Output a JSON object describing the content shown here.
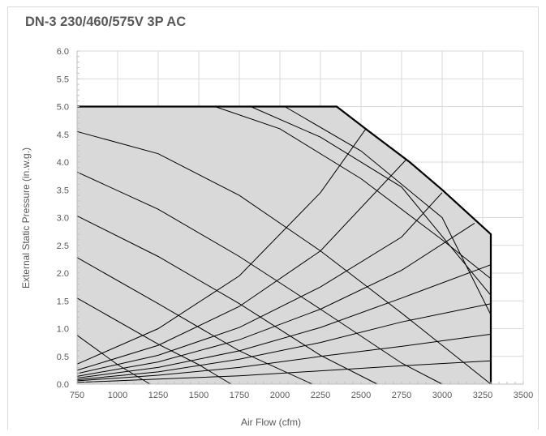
{
  "chart_data": {
    "type": "line",
    "title": "DN-3 230/460/575V 3P AC",
    "xlabel": "Air Flow (cfm)",
    "ylabel": "External Static Pressure (in.w.g.)",
    "xlim": [
      750,
      3500
    ],
    "ylim": [
      0,
      6
    ],
    "xticks": [
      750,
      1000,
      1250,
      1500,
      1750,
      2000,
      2250,
      2500,
      2750,
      3000,
      3250,
      3500
    ],
    "yticks": [
      "0.0",
      "0.5",
      "1.0",
      "1.5",
      "2.0",
      "2.5",
      "3.0",
      "3.5",
      "4.0",
      "4.5",
      "5.0",
      "5.5",
      "6.0"
    ],
    "grid": true,
    "legend": "none",
    "colors": {
      "envelope_fill": "#d9d9d9",
      "envelope_line": "#000000",
      "curve": "#000000",
      "grid": "#d9d9d9"
    },
    "envelope": {
      "x": [
        750,
        750,
        2350,
        2550,
        2800,
        3000,
        3300,
        3300
      ],
      "y": [
        0,
        5.0,
        5.0,
        4.55,
        4.0,
        3.5,
        2.7,
        0
      ]
    },
    "fan_curves": [
      {
        "x": [
          750,
          1000,
          1200
        ],
        "y": [
          0.88,
          0.35,
          0
        ]
      },
      {
        "x": [
          750,
          1250,
          1500,
          1700
        ],
        "y": [
          1.55,
          0.72,
          0.35,
          0
        ]
      },
      {
        "x": [
          750,
          1250,
          1750,
          2200
        ],
        "y": [
          2.28,
          1.45,
          0.6,
          0
        ]
      },
      {
        "x": [
          750,
          1250,
          1750,
          2250,
          2600
        ],
        "y": [
          3.03,
          2.3,
          1.45,
          0.52,
          0
        ]
      },
      {
        "x": [
          750,
          1250,
          1750,
          2250,
          2750,
          3000
        ],
        "y": [
          3.82,
          3.15,
          2.3,
          1.35,
          0.38,
          0
        ]
      },
      {
        "x": [
          750,
          1250,
          1750,
          2250,
          2750,
          3000,
          3300
        ],
        "y": [
          4.55,
          4.15,
          3.4,
          2.4,
          1.28,
          0.7,
          0
        ]
      },
      {
        "x": [
          1600,
          2000,
          2500,
          3000,
          3300
        ],
        "y": [
          5.0,
          4.6,
          3.7,
          2.6,
          1.9
        ]
      },
      {
        "x": [
          1820,
          2250,
          2750,
          3300
        ],
        "y": [
          5.0,
          4.45,
          3.55,
          1.6
        ]
      },
      {
        "x": [
          2030,
          2500,
          3000,
          3300
        ],
        "y": [
          5.0,
          4.2,
          3.0,
          1.25
        ]
      }
    ],
    "system_curves": [
      {
        "x": [
          750,
          1250,
          1750,
          2250,
          2530
        ],
        "y": [
          0.36,
          1.0,
          1.95,
          3.45,
          4.6
        ]
      },
      {
        "x": [
          750,
          1250,
          1750,
          2250,
          2780
        ],
        "y": [
          0.25,
          0.7,
          1.4,
          2.4,
          4.05
        ]
      },
      {
        "x": [
          750,
          1250,
          1750,
          2250,
          2750,
          3000
        ],
        "y": [
          0.19,
          0.52,
          1.02,
          1.75,
          2.65,
          3.45
        ]
      },
      {
        "x": [
          750,
          1250,
          1750,
          2250,
          2750,
          3200
        ],
        "y": [
          0.14,
          0.4,
          0.8,
          1.35,
          2.05,
          2.9
        ]
      },
      {
        "x": [
          750,
          1250,
          1750,
          2250,
          2750,
          3300
        ],
        "y": [
          0.11,
          0.3,
          0.6,
          1.02,
          1.55,
          2.15
        ]
      },
      {
        "x": [
          750,
          1250,
          1750,
          2250,
          2750,
          3300
        ],
        "y": [
          0.08,
          0.22,
          0.45,
          0.75,
          1.12,
          1.45
        ]
      },
      {
        "x": [
          750,
          1250,
          1750,
          2250,
          2750,
          3300
        ],
        "y": [
          0.06,
          0.16,
          0.3,
          0.5,
          0.68,
          0.9
        ]
      },
      {
        "x": [
          750,
          1250,
          1750,
          2250,
          2750,
          3300
        ],
        "y": [
          0.03,
          0.09,
          0.15,
          0.24,
          0.33,
          0.42
        ]
      }
    ]
  }
}
